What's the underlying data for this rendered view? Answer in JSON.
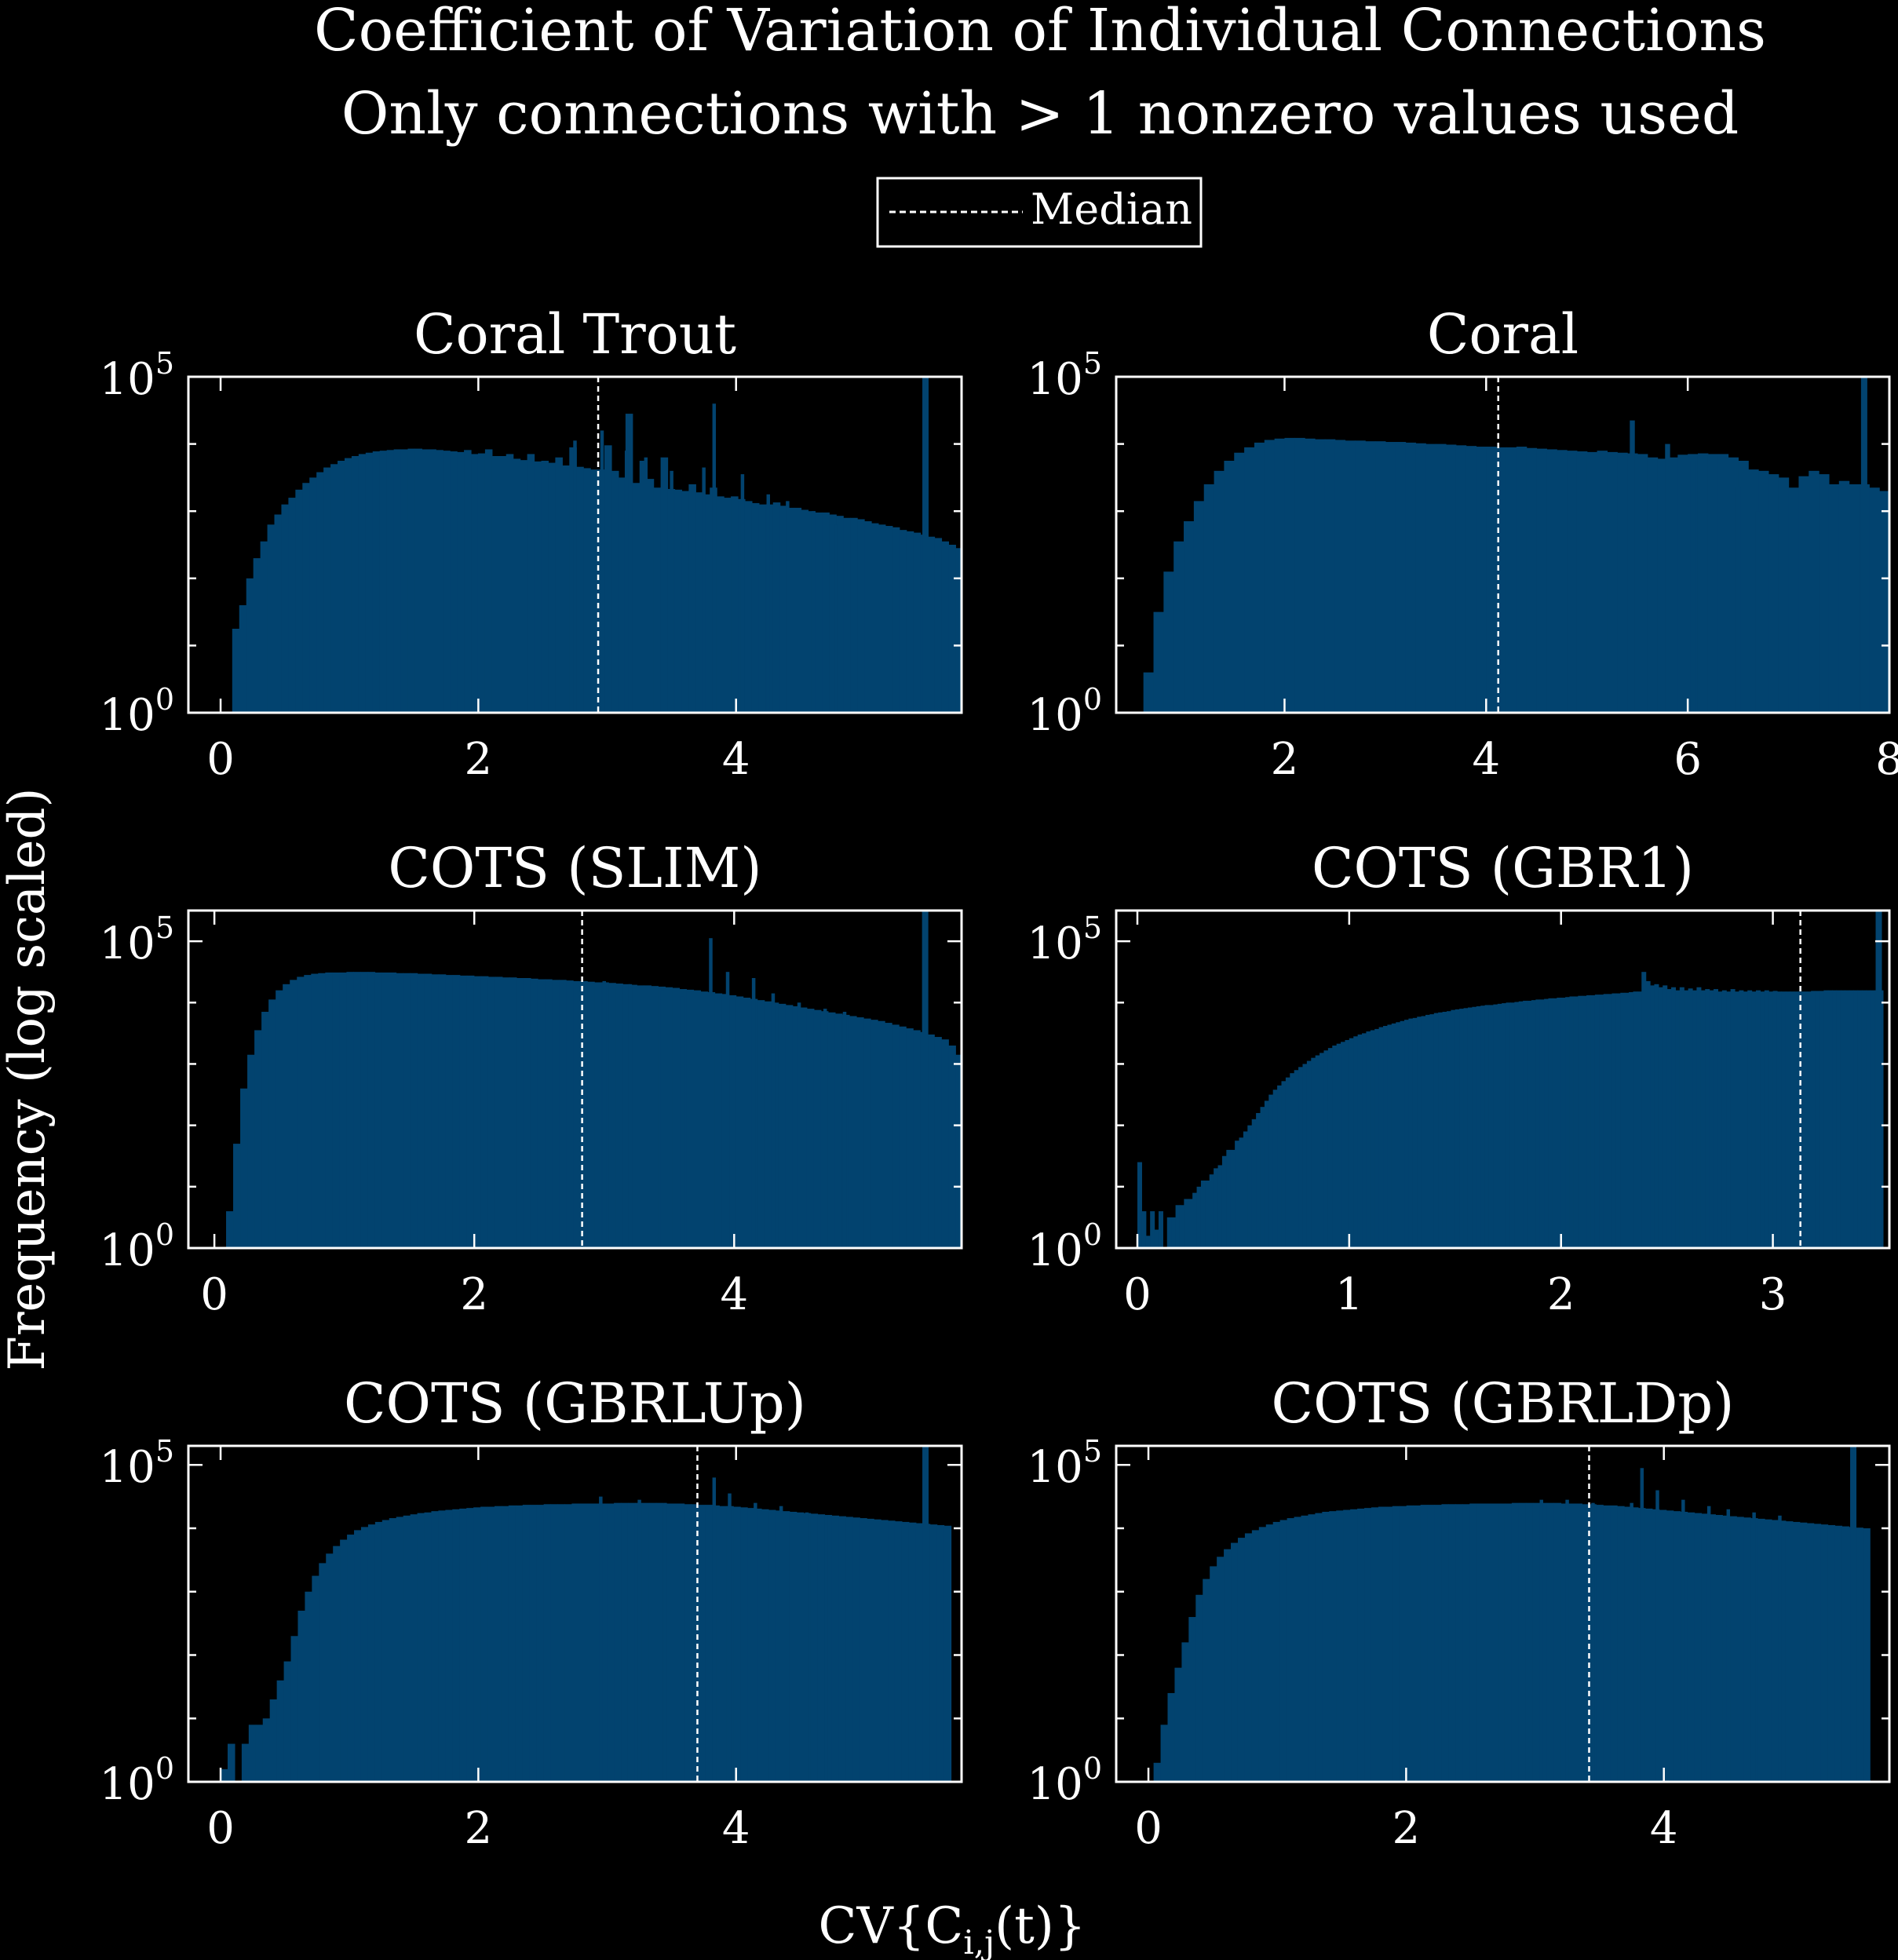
{
  "figure": {
    "title": "Coefficient of Variation of Individual Connections",
    "subtitle": "Only connections with > 1 nonzero values used",
    "legend_label": "Median",
    "ylabel": "Frequency (log scaled)",
    "xlabel_prefix": "CV{C",
    "xlabel_sub": "i,j",
    "xlabel_suffix": "(t)}",
    "bar_color": "#02436f",
    "axis_color": "#ffffff",
    "median_line_style": "dashed",
    "y_scale": "log",
    "y_tick_base": "10",
    "y_tick_exponents": [
      "0",
      "5"
    ],
    "legend_position": "top-center"
  },
  "chart_data": [
    {
      "type": "bar",
      "title": "Coral Trout",
      "xlim": [
        -0.25,
        5.75
      ],
      "ylog_range": [
        0,
        5
      ],
      "xticks": [
        "0",
        "2",
        "4"
      ],
      "median": 2.93,
      "hist_start": 0.09,
      "bin_width": 0.0545,
      "values": [
        1.25,
        1.6,
        2.0,
        2.3,
        2.55,
        2.8,
        2.95,
        3.1,
        3.2,
        3.32,
        3.42,
        3.5,
        3.58,
        3.65,
        3.7,
        3.75,
        3.79,
        3.82,
        3.85,
        3.87,
        3.89,
        3.9,
        3.91,
        3.92,
        3.92,
        3.93,
        3.93,
        3.92,
        3.92,
        3.91,
        3.9,
        3.89,
        3.88,
        3.91,
        3.85,
        3.86,
        3.92,
        3.82,
        3.82,
        3.85,
        3.78,
        3.76,
        3.85,
        3.74,
        3.75,
        3.72,
        3.8,
        3.68,
        3.95,
        3.66,
        3.64,
        3.62,
        3.62,
        3.98,
        3.6,
        3.5,
        4.45,
        3.42,
        3.75,
        3.48,
        3.35,
        3.8,
        3.33,
        3.32,
        3.3,
        3.4,
        3.28,
        3.25,
        3.35,
        3.22,
        3.2,
        3.22,
        3.18,
        3.15,
        3.12,
        3.1,
        3.1,
        3.13,
        3.08,
        3.05,
        3.05,
        3.02,
        3.0,
        2.98,
        2.98,
        2.95,
        2.93,
        2.9,
        2.9,
        2.88,
        2.85,
        2.82,
        2.8,
        2.78,
        2.76,
        2.72,
        2.7,
        2.68,
        2.65,
        2.62,
        2.6,
        2.55,
        2.5,
        2.45,
        2.35,
        2.15
      ],
      "spikes": [
        [
          2.75,
          4.05
        ],
        [
          2.96,
          4.2
        ],
        [
          3.15,
          3.9
        ],
        [
          3.3,
          3.8
        ],
        [
          3.5,
          3.6
        ],
        [
          3.75,
          3.65
        ],
        [
          3.83,
          4.6
        ],
        [
          4.05,
          3.55
        ],
        [
          4.25,
          3.25
        ],
        [
          4.4,
          3.15
        ],
        [
          4.6,
          3.0
        ],
        [
          4.78,
          2.8
        ]
      ],
      "edge_spike": [
        5.47,
        5.0
      ]
    },
    {
      "type": "bar",
      "title": "Coral",
      "xlim": [
        0.33,
        8.0
      ],
      "ylog_range": [
        0,
        5
      ],
      "xticks": [
        "2",
        "4",
        "6",
        "8"
      ],
      "median": 4.12,
      "hist_start": 0.6,
      "bin_width": 0.1,
      "values": [
        0.6,
        1.5,
        2.1,
        2.55,
        2.85,
        3.15,
        3.4,
        3.6,
        3.75,
        3.87,
        3.95,
        4.02,
        4.06,
        4.08,
        4.09,
        4.09,
        4.08,
        4.07,
        4.07,
        4.06,
        4.05,
        4.05,
        4.04,
        4.04,
        4.03,
        4.03,
        4.02,
        4.01,
        4.0,
        4.0,
        3.99,
        3.98,
        3.97,
        3.96,
        3.96,
        3.95,
        3.95,
        3.96,
        3.94,
        3.93,
        3.92,
        3.91,
        3.9,
        3.89,
        3.88,
        3.9,
        3.88,
        3.87,
        3.86,
        3.85,
        3.8,
        3.78,
        3.8,
        3.84,
        3.85,
        3.86,
        3.85,
        3.85,
        3.8,
        3.75,
        3.62,
        3.6,
        3.55,
        3.5,
        3.35,
        3.52,
        3.6,
        3.55,
        3.4,
        3.45,
        3.4,
        3.4,
        3.35,
        3.3,
        3.25,
        3.2,
        3.1,
        3.0,
        2.95,
        2.85,
        2.75,
        2.6,
        2.35,
        2.0,
        1.5,
        1.0,
        0.45
      ],
      "spikes": [
        [
          5.45,
          4.35
        ],
        [
          5.8,
          4.0
        ],
        [
          6.05,
          3.75
        ],
        [
          6.5,
          3.35
        ],
        [
          6.7,
          3.0
        ]
      ],
      "edge_spike": [
        7.75,
        5.0
      ]
    },
    {
      "type": "bar",
      "title": "COTS (SLIM)",
      "xlim": [
        -0.2,
        5.75
      ],
      "ylog_range": [
        0,
        5.5
      ],
      "xticks": [
        "0",
        "2",
        "4"
      ],
      "median": 2.83,
      "hist_start": 0.09,
      "bin_width": 0.0545,
      "values": [
        0.6,
        1.7,
        2.6,
        3.15,
        3.55,
        3.85,
        4.05,
        4.2,
        4.3,
        4.37,
        4.42,
        4.45,
        4.47,
        4.48,
        4.49,
        4.49,
        4.49,
        4.5,
        4.5,
        4.5,
        4.5,
        4.49,
        4.49,
        4.49,
        4.48,
        4.48,
        4.48,
        4.47,
        4.47,
        4.46,
        4.46,
        4.45,
        4.45,
        4.44,
        4.44,
        4.43,
        4.43,
        4.42,
        4.42,
        4.41,
        4.41,
        4.4,
        4.4,
        4.39,
        4.38,
        4.38,
        4.37,
        4.37,
        4.36,
        4.35,
        4.35,
        4.34,
        4.33,
        4.33,
        4.32,
        4.31,
        4.3,
        4.29,
        4.28,
        4.28,
        4.27,
        4.26,
        4.25,
        4.24,
        4.22,
        4.21,
        4.2,
        4.18,
        4.17,
        4.15,
        4.14,
        4.12,
        4.1,
        4.08,
        4.06,
        4.04,
        4.02,
        4.0,
        3.98,
        3.96,
        3.94,
        3.92,
        3.9,
        3.88,
        3.86,
        3.84,
        3.82,
        3.8,
        3.78,
        3.76,
        3.74,
        3.72,
        3.7,
        3.67,
        3.64,
        3.61,
        3.58,
        3.55,
        3.52,
        3.48,
        3.44,
        3.4,
        3.3,
        3.15
      ],
      "spikes": [
        [
          3.0,
          4.35
        ],
        [
          3.2,
          4.3
        ],
        [
          3.45,
          4.2
        ],
        [
          3.6,
          4.1
        ],
        [
          3.82,
          5.05
        ],
        [
          3.95,
          4.5
        ],
        [
          4.15,
          4.4
        ],
        [
          4.3,
          4.15
        ],
        [
          4.5,
          4.0
        ],
        [
          4.7,
          3.9
        ],
        [
          4.85,
          3.85
        ]
      ],
      "edge_spike": [
        5.47,
        5.5
      ]
    },
    {
      "type": "bar",
      "title": "COTS (GBR1)",
      "xlim": [
        -0.1,
        3.55
      ],
      "ylog_range": [
        0,
        5.5
      ],
      "xticks": [
        "0",
        "1",
        "2",
        "3"
      ],
      "median": 3.13,
      "hist_start": 0.0,
      "bin_width": 0.02,
      "values": [
        1.4,
        0.6,
        0.2,
        0.6,
        0.3,
        0.6,
        0.0,
        0.5,
        0.5,
        0.7,
        0.7,
        0.8,
        0.8,
        0.9,
        1.0,
        1.1,
        1.1,
        1.2,
        1.3,
        1.35,
        1.5,
        1.6,
        1.6,
        1.75,
        1.8,
        1.9,
        2.0,
        2.1,
        2.2,
        2.3,
        2.4,
        2.5,
        2.58,
        2.65,
        2.72,
        2.78,
        2.85,
        2.9,
        2.95,
        3.0,
        3.05,
        3.1,
        3.14,
        3.18,
        3.22,
        3.26,
        3.3,
        3.33,
        3.36,
        3.39,
        3.42,
        3.45,
        3.48,
        3.5,
        3.53,
        3.55,
        3.57,
        3.6,
        3.62,
        3.64,
        3.66,
        3.68,
        3.7,
        3.72,
        3.74,
        3.75,
        3.77,
        3.78,
        3.8,
        3.81,
        3.83,
        3.84,
        3.85,
        3.86,
        3.88,
        3.89,
        3.9,
        3.91,
        3.92,
        3.93,
        3.94,
        3.95,
        3.96,
        3.96,
        3.97,
        3.98,
        3.99,
        4.0,
        4.0,
        4.01,
        4.02,
        4.03,
        4.03,
        4.04,
        4.05,
        4.05,
        4.06,
        4.07,
        4.07,
        4.08,
        4.08,
        4.09,
        4.1,
        4.1,
        4.11,
        4.11,
        4.12,
        4.12,
        4.13,
        4.13,
        4.14,
        4.14,
        4.15,
        4.15,
        4.16,
        4.16,
        4.17,
        4.18,
        4.18,
        4.5,
        4.35,
        4.28,
        4.3,
        4.25,
        4.28,
        4.22,
        4.25,
        4.2,
        4.25,
        4.2,
        4.23,
        4.2,
        4.25,
        4.2,
        4.22,
        4.2,
        4.22,
        4.18,
        4.2,
        4.18,
        4.22,
        4.18,
        4.2,
        4.18,
        4.2,
        4.18,
        4.2,
        4.18,
        4.2,
        4.18,
        4.19,
        4.18,
        4.18,
        4.18,
        4.18,
        4.18,
        4.18,
        4.18,
        4.18,
        4.19,
        4.19,
        4.19,
        4.2,
        4.2,
        4.2,
        4.2,
        4.2,
        4.2,
        4.2,
        4.2,
        4.2,
        4.2,
        4.2,
        4.2,
        4.2,
        4.2
      ],
      "spikes": [],
      "edge_spike": [
        3.5,
        5.5
      ]
    },
    {
      "type": "bar",
      "title": "COTS (GBRLUp)",
      "xlim": [
        -0.25,
        5.75
      ],
      "ylog_range": [
        0,
        5.3
      ],
      "xticks": [
        "0",
        "2",
        "4"
      ],
      "median": 3.7,
      "hist_start": 0.0,
      "bin_width": 0.0545,
      "values": [
        0.2,
        0.6,
        0.0,
        0.6,
        0.9,
        0.9,
        1.0,
        1.3,
        1.6,
        1.9,
        2.3,
        2.7,
        3.0,
        3.25,
        3.45,
        3.6,
        3.72,
        3.82,
        3.9,
        3.97,
        4.02,
        4.06,
        4.1,
        4.13,
        4.16,
        4.18,
        4.2,
        4.22,
        4.24,
        4.25,
        4.27,
        4.28,
        4.29,
        4.3,
        4.31,
        4.32,
        4.33,
        4.34,
        4.34,
        4.35,
        4.35,
        4.36,
        4.36,
        4.37,
        4.37,
        4.37,
        4.38,
        4.38,
        4.38,
        4.38,
        4.39,
        4.39,
        4.39,
        4.39,
        4.39,
        4.39,
        4.4,
        4.4,
        4.4,
        4.4,
        4.4,
        4.4,
        4.4,
        4.39,
        4.39,
        4.39,
        4.38,
        4.38,
        4.37,
        4.37,
        4.36,
        4.35,
        4.35,
        4.34,
        4.33,
        4.32,
        4.31,
        4.3,
        4.29,
        4.28,
        4.27,
        4.26,
        4.25,
        4.24,
        4.23,
        4.22,
        4.21,
        4.2,
        4.19,
        4.18,
        4.17,
        4.16,
        4.15,
        4.14,
        4.13,
        4.12,
        4.11,
        4.1,
        4.09,
        4.08,
        4.07,
        4.06,
        4.05,
        4.04
      ],
      "spikes": [
        [
          2.95,
          4.5
        ],
        [
          3.25,
          4.45
        ],
        [
          3.45,
          4.4
        ],
        [
          3.83,
          4.8
        ],
        [
          3.95,
          4.55
        ],
        [
          4.15,
          4.4
        ],
        [
          4.35,
          4.35
        ],
        [
          4.55,
          4.25
        ],
        [
          4.7,
          4.2
        ]
      ],
      "edge_spike": [
        5.47,
        5.3
      ]
    },
    {
      "type": "bar",
      "title": "COTS (GBRLDp)",
      "xlim": [
        -0.25,
        5.75
      ],
      "ylog_range": [
        0,
        5.3
      ],
      "xticks": [
        "0",
        "2",
        "4"
      ],
      "median": 3.42,
      "hist_start": 0.04,
      "bin_width": 0.0545,
      "values": [
        0.3,
        0.9,
        1.4,
        1.8,
        2.2,
        2.6,
        2.95,
        3.2,
        3.4,
        3.55,
        3.67,
        3.77,
        3.85,
        3.92,
        3.97,
        4.02,
        4.06,
        4.1,
        4.13,
        4.16,
        4.18,
        4.2,
        4.22,
        4.24,
        4.26,
        4.27,
        4.28,
        4.29,
        4.3,
        4.31,
        4.32,
        4.33,
        4.34,
        4.34,
        4.35,
        4.35,
        4.36,
        4.36,
        4.37,
        4.37,
        4.37,
        4.38,
        4.38,
        4.38,
        4.38,
        4.39,
        4.39,
        4.39,
        4.39,
        4.39,
        4.39,
        4.4,
        4.4,
        4.4,
        4.4,
        4.4,
        4.4,
        4.4,
        4.39,
        4.39,
        4.39,
        4.38,
        4.38,
        4.37,
        4.36,
        4.36,
        4.35,
        4.34,
        4.33,
        4.32,
        4.31,
        4.3,
        4.29,
        4.28,
        4.27,
        4.26,
        4.25,
        4.24,
        4.23,
        4.22,
        4.21,
        4.2,
        4.19,
        4.18,
        4.17,
        4.16,
        4.15,
        4.14,
        4.13,
        4.12,
        4.11,
        4.1,
        4.09,
        4.08,
        4.07,
        4.06,
        4.05,
        4.04,
        4.03,
        4.02,
        4.01,
        4.0
      ],
      "spikes": [
        [
          3.05,
          4.45
        ],
        [
          3.25,
          4.45
        ],
        [
          3.45,
          4.4
        ],
        [
          3.75,
          4.4
        ],
        [
          3.83,
          4.95
        ],
        [
          3.95,
          4.6
        ],
        [
          4.15,
          4.45
        ],
        [
          4.35,
          4.35
        ],
        [
          4.5,
          4.3
        ],
        [
          4.7,
          4.25
        ],
        [
          4.9,
          4.2
        ]
      ],
      "edge_spike": [
        5.47,
        5.3
      ]
    }
  ]
}
